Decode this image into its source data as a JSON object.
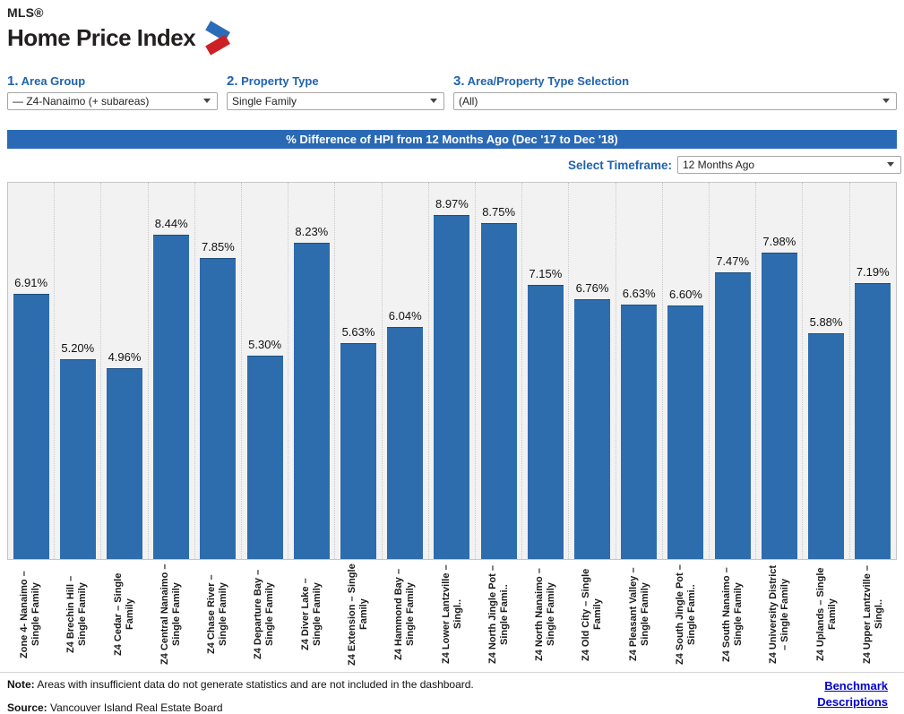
{
  "logo": {
    "mls": "MLS®",
    "title": "Home Price Index"
  },
  "filters": {
    "area_group": {
      "number": "1.",
      "label": " Area Group",
      "value": "— Z4-Nanaimo (+ subareas)"
    },
    "property_type": {
      "number": "2.",
      "label": " Property Type",
      "value": "Single Family"
    },
    "selection": {
      "number": "3.",
      "label": " Area/Property Type Selection",
      "value": "(All)"
    }
  },
  "banner": {
    "title": "% Difference of HPI from 12 Months Ago (Dec '17 to Dec '18)"
  },
  "timeframe": {
    "label": "Select Timeframe:",
    "value": "12 Months Ago"
  },
  "chart_data": {
    "type": "bar",
    "title": "% Difference of HPI from 12 Months Ago (Dec '17 to Dec '18)",
    "categories": [
      "Zone 4- Nanaimo – Single Family",
      "Z4 Brechin Hill – Single Family",
      "Z4 Cedar – Single Family",
      "Z4 Central Nanaimo – Single Family",
      "Z4 Chase River – Single Family",
      "Z4 Departure Bay – Single Family",
      "Z4 Diver Lake – Single Family",
      "Z4 Extension – Single Family",
      "Z4 Hammond Bay – Single Family",
      "Z4 Lower Lantzville – Singl..",
      "Z4 North Jingle Pot – Single Fami..",
      "Z4 North Nanaimo – Single Family",
      "Z4 Old City – Single Family",
      "Z4 Pleasant Valley – Single Family",
      "Z4 South Jingle Pot – Single Fami..",
      "Z4 South Nanaimo – Single Family",
      "Z4 University District – Single Family",
      "Z4 Uplands – Single Family",
      "Z4 Upper Lantzville – Singl.."
    ],
    "values": [
      6.91,
      5.2,
      4.96,
      8.44,
      7.85,
      5.3,
      8.23,
      5.63,
      6.04,
      8.97,
      8.75,
      7.15,
      6.76,
      6.63,
      6.6,
      7.47,
      7.98,
      5.88,
      7.19
    ],
    "value_labels": [
      "6.91%",
      "5.20%",
      "4.96%",
      "8.44%",
      "7.85%",
      "5.30%",
      "8.23%",
      "5.63%",
      "6.04%",
      "8.97%",
      "8.75%",
      "7.15%",
      "6.76%",
      "6.63%",
      "6.60%",
      "7.47%",
      "7.98%",
      "5.88%",
      "7.19%"
    ],
    "xlabel": "",
    "ylabel": "",
    "ylim": [
      0,
      9.8
    ],
    "grid": "vertical-dotted",
    "legend": "none",
    "bar_color": "#2d6cad",
    "plot_bg": "#f2f2f2"
  },
  "footer": {
    "note_label": "Note:",
    "note_text": " Areas with insufficient data do not generate statistics and are not included in the dashboard.",
    "source_label": "Source:",
    "source_text": " Vancouver Island Real Estate Board",
    "link_line1": "Benchmark",
    "link_line2": "Descriptions"
  },
  "colors": {
    "banner_blue": "#2a69b5",
    "bar_blue": "#2d6cad",
    "label_blue": "#1f63ae",
    "link_blue": "#0000cc",
    "logo_blue": "#2b6cb8",
    "logo_red": "#cc2027"
  }
}
